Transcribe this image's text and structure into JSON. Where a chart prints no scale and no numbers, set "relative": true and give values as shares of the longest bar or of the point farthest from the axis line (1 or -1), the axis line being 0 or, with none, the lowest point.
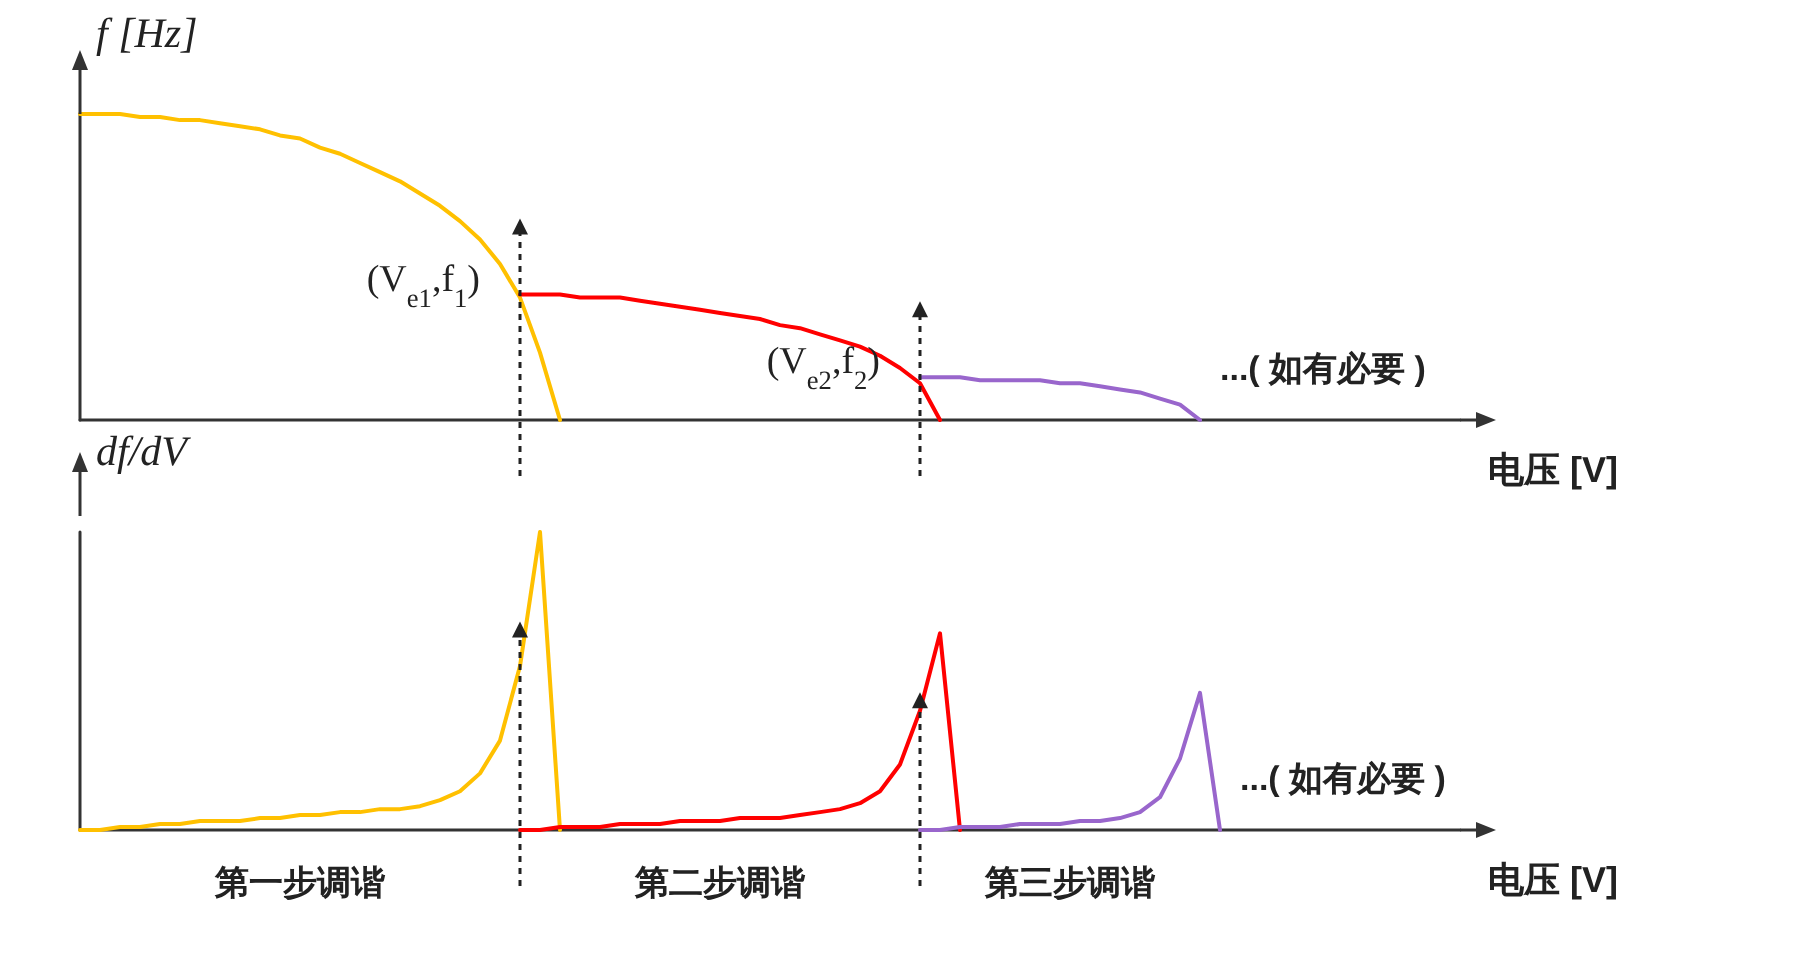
{
  "chart_data": [
    {
      "type": "line",
      "relative": true,
      "grid": false,
      "marker": "none",
      "ylabel": "f [Hz]",
      "xlabel": "电压 [V]",
      "annotations": [
        "(V$_{e1}$,f$_{1}$)",
        "(V$_{e2}$,f$_{2}$)",
        "...( 如有必要 )"
      ],
      "categories": [
        null,
        null,
        null,
        null,
        null,
        null,
        null,
        null,
        null,
        null,
        null,
        null,
        null,
        null,
        null,
        null,
        null,
        null,
        null,
        null,
        null,
        null,
        null,
        null,
        null,
        null,
        null,
        null,
        null,
        null,
        null,
        null,
        null,
        null,
        null,
        null,
        null,
        null,
        null,
        null,
        null,
        null,
        null,
        null,
        null,
        null,
        null,
        null,
        null,
        null,
        null,
        null,
        null,
        null,
        null,
        null,
        null,
        null,
        null,
        null,
        null,
        null,
        null,
        null,
        null,
        null,
        null,
        null,
        null,
        null
      ],
      "series": [
        {
          "color": "#ffc000",
          "values": [
            1.0,
            1.0,
            1.0,
            0.99,
            0.99,
            0.98,
            0.98,
            0.97,
            0.96,
            0.95,
            0.93,
            0.92,
            0.89,
            0.87,
            0.84,
            0.81,
            0.78,
            0.74,
            0.7,
            0.65,
            0.59,
            0.51,
            0.4,
            0.22,
            0,
            null,
            null,
            null,
            null,
            null,
            null,
            null,
            null,
            null,
            null,
            null,
            null,
            null,
            null,
            null,
            null,
            null,
            null,
            null,
            null,
            null,
            null,
            null,
            null,
            null,
            null,
            null,
            null,
            null,
            null,
            null,
            null,
            null,
            null,
            null,
            null,
            null,
            null,
            null,
            null,
            null,
            null,
            null,
            null,
            null
          ]
        },
        {
          "color": "#ff0000",
          "values": [
            null,
            null,
            null,
            null,
            null,
            null,
            null,
            null,
            null,
            null,
            null,
            null,
            null,
            null,
            null,
            null,
            null,
            null,
            null,
            null,
            null,
            null,
            0.41,
            0.41,
            0.41,
            0.4,
            0.4,
            0.4,
            0.39,
            0.38,
            0.37,
            0.36,
            0.35,
            0.34,
            0.33,
            0.31,
            0.3,
            0.28,
            0.26,
            0.24,
            0.21,
            0.17,
            0.12,
            0,
            null,
            null,
            null,
            null,
            null,
            null,
            null,
            null,
            null,
            null,
            null,
            null,
            null,
            null,
            null,
            null,
            null,
            null,
            null,
            null,
            null,
            null,
            null,
            null,
            null,
            null
          ]
        },
        {
          "color": "#9966cc",
          "values": [
            null,
            null,
            null,
            null,
            null,
            null,
            null,
            null,
            null,
            null,
            null,
            null,
            null,
            null,
            null,
            null,
            null,
            null,
            null,
            null,
            null,
            null,
            null,
            null,
            null,
            null,
            null,
            null,
            null,
            null,
            null,
            null,
            null,
            null,
            null,
            null,
            null,
            null,
            null,
            null,
            null,
            null,
            0.14,
            0.14,
            0.14,
            0.13,
            0.13,
            0.13,
            0.13,
            0.12,
            0.12,
            0.11,
            0.1,
            0.09,
            0.07,
            0.05,
            0,
            null,
            null,
            null,
            null,
            null,
            null,
            null,
            null,
            null,
            null,
            null,
            null,
            null
          ]
        }
      ]
    },
    {
      "type": "line",
      "relative": true,
      "grid": false,
      "marker": "none",
      "ylabel": "df/dV",
      "xlabel": "电压 [V]",
      "annotations": [
        "第一步调谐",
        "第二步调谐",
        "第三步调谐",
        "...( 如有必要 )"
      ],
      "categories": [
        null,
        null,
        null,
        null,
        null,
        null,
        null,
        null,
        null,
        null,
        null,
        null,
        null,
        null,
        null,
        null,
        null,
        null,
        null,
        null,
        null,
        null,
        null,
        null,
        null,
        null,
        null,
        null,
        null,
        null,
        null,
        null,
        null,
        null,
        null,
        null,
        null,
        null,
        null,
        null,
        null,
        null,
        null,
        null,
        null,
        null,
        null,
        null,
        null,
        null,
        null,
        null,
        null,
        null,
        null,
        null,
        null,
        null,
        null,
        null,
        null,
        null,
        null,
        null,
        null,
        null,
        null,
        null,
        null,
        null
      ],
      "series": [
        {
          "color": "#ffc000",
          "values": [
            0,
            0,
            0.01,
            0.01,
            0.02,
            0.02,
            0.03,
            0.03,
            0.03,
            0.04,
            0.04,
            0.05,
            0.05,
            0.06,
            0.06,
            0.07,
            0.07,
            0.08,
            0.1,
            0.13,
            0.19,
            0.3,
            0.55,
            1.0,
            0,
            null,
            null,
            null,
            null,
            null,
            null,
            null,
            null,
            null,
            null,
            null,
            null,
            null,
            null,
            null,
            null,
            null,
            null,
            null,
            null,
            null,
            null,
            null,
            null,
            null,
            null,
            null,
            null,
            null,
            null,
            null,
            null,
            null,
            null,
            null,
            null,
            null,
            null,
            null,
            null,
            null,
            null,
            null,
            null,
            null
          ]
        },
        {
          "color": "#ff0000",
          "values": [
            null,
            null,
            null,
            null,
            null,
            null,
            null,
            null,
            null,
            null,
            null,
            null,
            null,
            null,
            null,
            null,
            null,
            null,
            null,
            null,
            null,
            null,
            0,
            0,
            0.01,
            0.01,
            0.01,
            0.02,
            0.02,
            0.02,
            0.03,
            0.03,
            0.03,
            0.04,
            0.04,
            0.04,
            0.05,
            0.06,
            0.07,
            0.09,
            0.13,
            0.22,
            0.4,
            0.66,
            0,
            null,
            null,
            null,
            null,
            null,
            null,
            null,
            null,
            null,
            null,
            null,
            null,
            null,
            null,
            null,
            null,
            null,
            null,
            null,
            null,
            null,
            null,
            null,
            null,
            null
          ]
        },
        {
          "color": "#9966cc",
          "values": [
            null,
            null,
            null,
            null,
            null,
            null,
            null,
            null,
            null,
            null,
            null,
            null,
            null,
            null,
            null,
            null,
            null,
            null,
            null,
            null,
            null,
            null,
            null,
            null,
            null,
            null,
            null,
            null,
            null,
            null,
            null,
            null,
            null,
            null,
            null,
            null,
            null,
            null,
            null,
            null,
            null,
            null,
            0,
            0,
            0.01,
            0.01,
            0.01,
            0.02,
            0.02,
            0.02,
            0.03,
            0.03,
            0.04,
            0.06,
            0.11,
            0.24,
            0.46,
            0,
            null,
            null,
            null,
            null,
            null,
            null,
            null,
            null,
            null,
            null,
            null,
            null
          ]
        }
      ]
    }
  ]
}
